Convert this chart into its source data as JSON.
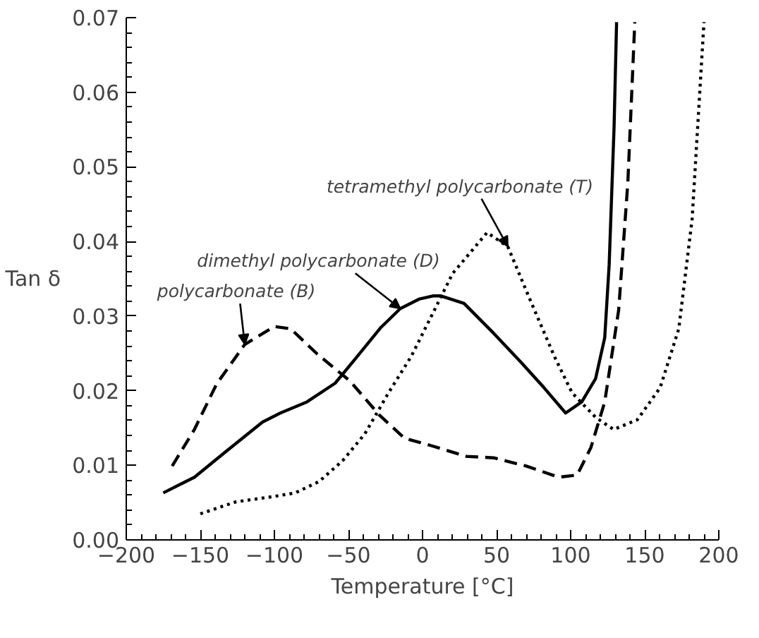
{
  "chart_data": {
    "type": "line",
    "xlabel": "Temperature [°C]",
    "ylabel": "Tan δ",
    "xlim": [
      -200,
      200
    ],
    "ylim": [
      0,
      0.07
    ],
    "xticks": [
      -200,
      -150,
      -100,
      -50,
      0,
      50,
      100,
      150,
      200
    ],
    "yticks": [
      {
        "value": 0,
        "label": "0.00"
      },
      {
        "value": 0.01,
        "label": "0.01"
      },
      {
        "value": 0.02,
        "label": "0.02"
      },
      {
        "value": 0.03,
        "label": "0.03"
      },
      {
        "value": 0.04,
        "label": "0.04"
      },
      {
        "value": 0.05,
        "label": "0.05"
      },
      {
        "value": 0.06,
        "label": "0.06"
      },
      {
        "value": 0.07,
        "label": "0.07"
      }
    ],
    "grid": false,
    "series": [
      {
        "color": "#000000",
        "line_style": "solid",
        "x": [
          -175,
          -154,
          -133,
          -108,
          -96,
          -78,
          -59,
          -44,
          -28,
          -15,
          -2,
          7,
          12.5,
          28,
          48,
          67,
          82,
          96.6,
          107.5,
          116.8,
          123,
          126,
          129.3,
          131
        ],
        "values": [
          0.0063,
          0.0084,
          0.0118,
          0.0158,
          0.017,
          0.0185,
          0.021,
          0.0246,
          0.0285,
          0.031,
          0.0323,
          0.0327,
          0.0327,
          0.0317,
          0.0277,
          0.0237,
          0.0204,
          0.017,
          0.0185,
          0.0216,
          0.0271,
          0.0369,
          0.0553,
          0.0694
        ]
      },
      {
        "color": "#000000",
        "line_style": "dashed",
        "x": [
          -169,
          -154,
          -139,
          -120,
          -100,
          -89,
          -71,
          -49,
          -29,
          -12,
          4.7,
          29.6,
          48,
          70,
          92,
          104.4,
          113.7,
          123,
          132.4,
          138.6,
          143.3
        ],
        "values": [
          0.0099,
          0.0148,
          0.0209,
          0.0262,
          0.0286,
          0.0283,
          0.0249,
          0.0213,
          0.0167,
          0.0136,
          0.0127,
          0.0112,
          0.011,
          0.0099,
          0.0084,
          0.0087,
          0.0124,
          0.0185,
          0.0308,
          0.0479,
          0.0694
        ]
      },
      {
        "color": "#000000",
        "line_style": "dotted",
        "x": [
          -150,
          -126,
          -101,
          -86,
          -70,
          -54,
          -39,
          -23,
          -7.6,
          8,
          20.3,
          43.6,
          57.6,
          73,
          89,
          101,
          117,
          129,
          145,
          160.4,
          173,
          182,
          190
        ],
        "values": [
          0.0035,
          0.0051,
          0.0058,
          0.0063,
          0.0078,
          0.0106,
          0.0142,
          0.0197,
          0.0246,
          0.0308,
          0.0357,
          0.0412,
          0.0393,
          0.032,
          0.0246,
          0.0197,
          0.0164,
          0.0148,
          0.0161,
          0.0204,
          0.0283,
          0.043,
          0.0694
        ]
      }
    ],
    "annotations": [
      {
        "text": "polycarbonate (B)",
        "x": -120,
        "y": 0.0262
      },
      {
        "text": "dimethyl polycarbonate (D)",
        "x": -15,
        "y": 0.031
      },
      {
        "text": "tetramethyl polycarbonate (T)",
        "x": 57.6,
        "y": 0.0393
      }
    ]
  }
}
